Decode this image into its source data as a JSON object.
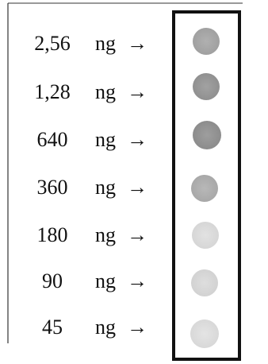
{
  "rows": [
    {
      "amount": "2,56",
      "unit": "ng",
      "arrow": "→"
    },
    {
      "amount": "1,28",
      "unit": "ng",
      "arrow": "→"
    },
    {
      "amount": "640",
      "unit": "ng",
      "arrow": "→"
    },
    {
      "amount": "360",
      "unit": "ng",
      "arrow": "→"
    },
    {
      "amount": "180",
      "unit": "ng",
      "arrow": "→"
    },
    {
      "amount": "90",
      "unit": "ng",
      "arrow": "→"
    },
    {
      "amount": "45",
      "unit": "ng",
      "arrow": "→"
    }
  ]
}
